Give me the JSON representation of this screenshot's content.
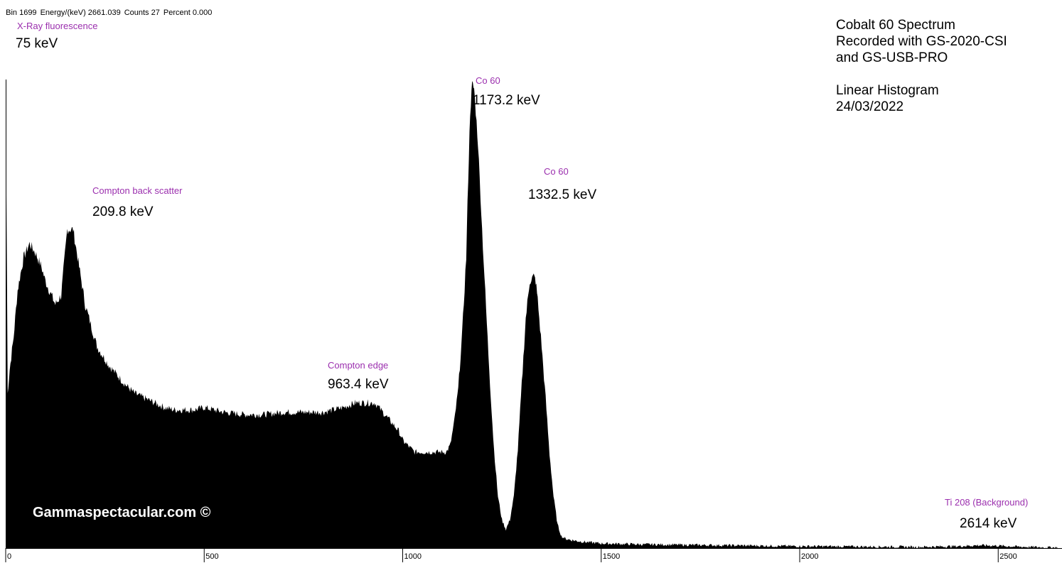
{
  "status_bar": {
    "bin": "Bin 1699",
    "energy": "Energy/(keV) 2661.039",
    "counts": "Counts 27",
    "percent": "Percent 0.000"
  },
  "info_box": {
    "line1": "Cobalt 60 Spectrum",
    "line2": "Recorded with GS-2020-CSI",
    "line3": "and GS-USB-PRO",
    "line4": "Linear Histogram",
    "line5": "24/03/2022"
  },
  "annotations": {
    "xray": {
      "label": "X-Ray fluorescence",
      "value": "75 keV"
    },
    "backscatter": {
      "label": "Compton back scatter",
      "value": "209.8 keV"
    },
    "compton_edge": {
      "label": "Compton edge",
      "value": "963.4 keV"
    },
    "co60_1": {
      "label": "Co 60",
      "value": "1173.2 keV"
    },
    "co60_2": {
      "label": "Co 60",
      "value": "1332.5 keV"
    },
    "ti208": {
      "label": "Ti 208 (Background)",
      "value": "2614 keV"
    }
  },
  "watermark": "Gammaspectacular.com ©",
  "colors": {
    "fill": "#000000",
    "label": "#9b2fae",
    "text": "#000000",
    "background": "#ffffff"
  },
  "chart_data": {
    "type": "area",
    "xlabel": "",
    "ylabel": "",
    "xlim": [
      0,
      2650
    ],
    "ylim": [
      0,
      100
    ],
    "x_ticks": [
      0,
      500,
      1000,
      1500,
      2000,
      2500
    ],
    "x_tick_labels": [
      "0",
      "500",
      "1000",
      "1500",
      "2000",
      "2500"
    ],
    "grid": false,
    "series": [
      {
        "x": [
          0,
          5,
          10,
          20,
          30,
          45,
          60,
          75,
          90,
          100,
          110,
          125,
          140,
          155,
          170,
          185,
          200,
          210,
          220,
          230,
          245,
          260,
          280,
          300,
          325,
          350,
          375,
          400,
          425,
          450,
          475,
          500,
          550,
          600,
          650,
          700,
          750,
          800,
          850,
          880,
          900,
          930,
          950,
          970,
          990,
          1000,
          1030,
          1060,
          1090,
          1100,
          1110,
          1120,
          1130,
          1140,
          1150,
          1160,
          1165,
          1170,
          1175,
          1180,
          1190,
          1200,
          1210,
          1220,
          1230,
          1240,
          1250,
          1260,
          1270,
          1280,
          1290,
          1300,
          1310,
          1320,
          1330,
          1335,
          1340,
          1350,
          1360,
          1370,
          1380,
          1390,
          1400,
          1410,
          1420,
          1440,
          1460,
          1500,
          1550,
          1600,
          1700,
          1800,
          1900,
          2000,
          2100,
          2200,
          2300,
          2400,
          2450,
          2500,
          2550,
          2600,
          2650
        ],
        "y": [
          100,
          33,
          38,
          45,
          55,
          62,
          65,
          63,
          60,
          57,
          55,
          52,
          54,
          68,
          68,
          60,
          52,
          49,
          46,
          43,
          41,
          39,
          37,
          35,
          33,
          32,
          31,
          30,
          29.5,
          29.5,
          29.5,
          30,
          29,
          28.5,
          28.5,
          29,
          29,
          29,
          30,
          31,
          31,
          31,
          29,
          27,
          25,
          23,
          20.5,
          20.5,
          20.5,
          20.5,
          20.5,
          22,
          27,
          34,
          46,
          62,
          79,
          93,
          99,
          98,
          86,
          68,
          51,
          35,
          21,
          11,
          6,
          4,
          6,
          11,
          21,
          35,
          49,
          57,
          58,
          57,
          53,
          43,
          32,
          20,
          11,
          5,
          2.5,
          2,
          1.8,
          1.5,
          1.3,
          1.0,
          0.9,
          0.8,
          0.7,
          0.6,
          0.5,
          0.4,
          0.35,
          0.3,
          0.25,
          0.4,
          0.6,
          0.5,
          0.3,
          0.2,
          0.1
        ]
      }
    ]
  }
}
